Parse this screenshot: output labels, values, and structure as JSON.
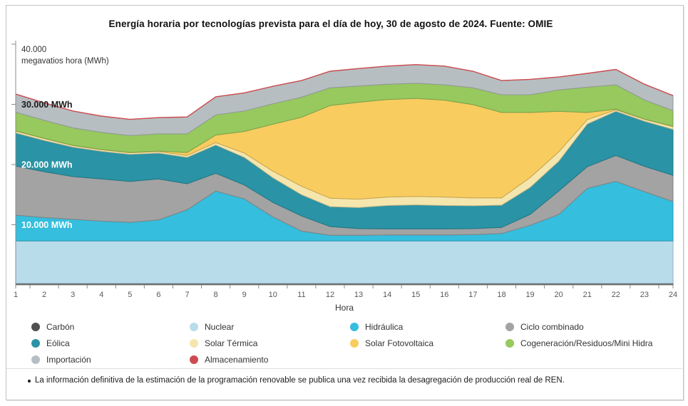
{
  "title": "Energía horaria por tecnologías prevista para el día de hoy, 30 de agosto de 2024. Fuente: OMIE",
  "footnote": "La información definitiva de la estimación de la programación renovable se publica una vez recibida la desagregación de producción real de REN.",
  "y_axis": {
    "top_label": "40.000",
    "unit_label": "megavatios hora (MWh)",
    "max": 40000,
    "inner_labels": [
      {
        "value": 30000,
        "text": "30.000 MWh",
        "color": "#1a1a1a"
      },
      {
        "value": 20000,
        "text": "20.000 MWh",
        "color": "#ffffff"
      },
      {
        "value": 10000,
        "text": "10.000 MWh",
        "color": "#ffffff"
      }
    ]
  },
  "chart_data": {
    "type": "area",
    "stacked": true,
    "title": "Energía horaria por tecnologías prevista para el día de hoy, 30 de agosto de 2024. Fuente: OMIE",
    "xlabel": "Hora",
    "ylabel": "megavatios hora (MWh)",
    "ylim": [
      0,
      40000
    ],
    "grid": false,
    "legend_position": "bottom",
    "x": [
      1,
      2,
      3,
      4,
      5,
      6,
      7,
      8,
      9,
      10,
      11,
      12,
      13,
      14,
      15,
      16,
      17,
      18,
      19,
      20,
      21,
      22,
      23,
      24
    ],
    "series": [
      {
        "name": "Carbón",
        "color": "#4f4f4f",
        "values": [
          250,
          250,
          250,
          250,
          250,
          250,
          250,
          250,
          250,
          250,
          250,
          250,
          250,
          250,
          250,
          250,
          250,
          250,
          250,
          250,
          250,
          250,
          250,
          250
        ]
      },
      {
        "name": "Nuclear",
        "color": "#b9dcea",
        "values": [
          7050,
          7050,
          7050,
          7050,
          7050,
          7050,
          7050,
          7050,
          7050,
          7050,
          7050,
          7050,
          7050,
          7050,
          7050,
          7050,
          7050,
          7050,
          7050,
          7050,
          7050,
          7050,
          7050,
          7050
        ]
      },
      {
        "name": "Hidráulica",
        "color": "#35bedd",
        "values": [
          4300,
          3900,
          3600,
          3300,
          3100,
          3500,
          5200,
          8300,
          7000,
          4000,
          1650,
          950,
          950,
          1000,
          1000,
          1000,
          1050,
          1250,
          2600,
          4400,
          8750,
          9900,
          8200,
          6550
        ]
      },
      {
        "name": "Ciclo combinado",
        "color": "#a3a3a3",
        "values": [
          8150,
          7600,
          7100,
          7000,
          6800,
          6800,
          4300,
          2950,
          2300,
          2400,
          2500,
          1450,
          1100,
          1000,
          1000,
          1000,
          1000,
          1000,
          1800,
          3900,
          3600,
          4300,
          4200,
          4350
        ]
      },
      {
        "name": "Eólica",
        "color": "#2a93a5",
        "values": [
          5500,
          5200,
          4900,
          4600,
          4500,
          4300,
          4400,
          4700,
          4600,
          4100,
          3550,
          3300,
          3500,
          3900,
          4000,
          3900,
          3800,
          3700,
          4500,
          4950,
          7100,
          7350,
          7500,
          7650
        ]
      },
      {
        "name": "Solar Térmica",
        "color": "#f5e6ae",
        "values": [
          300,
          300,
          250,
          250,
          250,
          250,
          300,
          400,
          700,
          1100,
          1400,
          1400,
          1400,
          1400,
          1400,
          1400,
          1300,
          1200,
          1650,
          1550,
          700,
          250,
          300,
          450
        ]
      },
      {
        "name": "Solar Fotovoltaica",
        "color": "#f8cc5f",
        "values": [
          50,
          50,
          50,
          50,
          50,
          100,
          500,
          1250,
          3600,
          7800,
          11450,
          15400,
          16100,
          16200,
          16300,
          16100,
          15500,
          14200,
          10800,
          6750,
          1200,
          100,
          50,
          50
        ]
      },
      {
        "name": "Cogeneración/Residuos/Mini Hidra",
        "color": "#97c95e",
        "values": [
          3100,
          3000,
          2900,
          2850,
          2800,
          2850,
          3100,
          3350,
          3400,
          3400,
          3350,
          2950,
          2700,
          2550,
          2500,
          2550,
          2800,
          2950,
          2950,
          3550,
          4200,
          4050,
          3200,
          2600
        ]
      },
      {
        "name": "Importación",
        "color": "#b7bec1",
        "values": [
          3000,
          2900,
          2800,
          2700,
          2700,
          2700,
          2800,
          3000,
          3000,
          2900,
          2750,
          2750,
          2900,
          3000,
          3100,
          3100,
          2750,
          2350,
          2550,
          2150,
          2300,
          2550,
          2600,
          2500
        ]
      },
      {
        "name": "Almacenamiento",
        "color": "#cc4b4f",
        "values": [
          0,
          0,
          0,
          0,
          0,
          0,
          0,
          0,
          0,
          0,
          0,
          0,
          0,
          0,
          0,
          0,
          0,
          0,
          0,
          0,
          0,
          0,
          0,
          0
        ]
      }
    ]
  }
}
